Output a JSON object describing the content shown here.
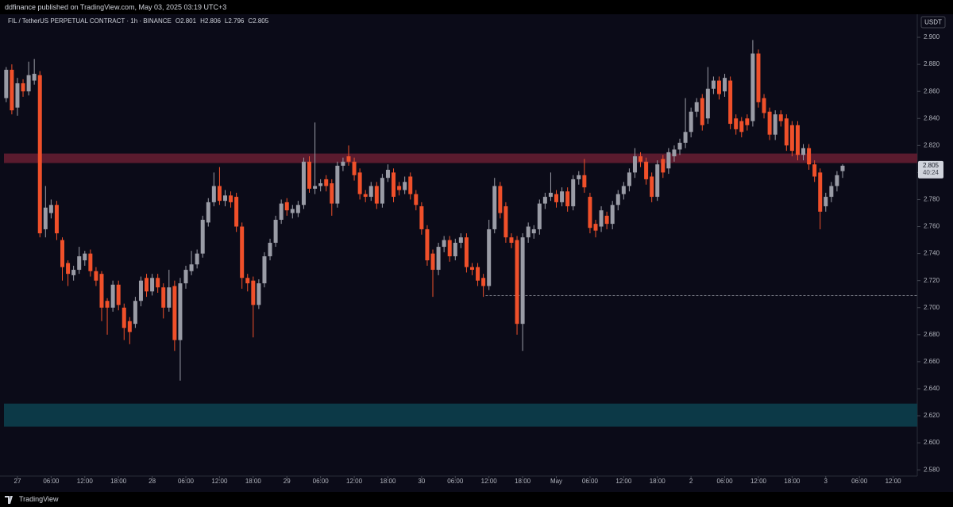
{
  "header": {
    "text": "ddfinance published on TradingView.com, May 03, 2025 03:19 UTC+3"
  },
  "chart_data": {
    "type": "candlestick",
    "title": "FIL / TetherUS PERPETUAL CONTRACT · 1h · BINANCE",
    "ohlc_legend": [
      {
        "key": "O",
        "value": 2.801
      },
      {
        "key": "H",
        "value": 2.806
      },
      {
        "key": "L",
        "value": 2.796
      },
      {
        "key": "C",
        "value": 2.805
      }
    ],
    "currency": "USDT",
    "up_color": "#9a9ca6",
    "down_color": "#f0502a",
    "open": [
      2.855,
      2.876,
      2.848,
      2.866,
      2.86,
      2.868,
      2.872,
      2.758,
      2.77,
      2.776,
      2.75,
      2.733,
      2.724,
      2.728,
      2.735,
      2.74,
      2.727,
      2.725,
      2.705,
      2.7,
      2.717,
      2.7,
      2.69,
      2.688,
      2.705,
      2.722,
      2.712,
      2.722,
      2.715,
      2.7,
      2.716,
      2.676,
      2.718,
      2.727,
      2.732,
      2.74,
      2.763,
      2.778,
      2.79,
      2.779,
      2.783,
      2.782,
      2.76,
      2.722,
      2.72,
      2.702,
      2.718,
      2.738,
      2.748,
      2.765,
      2.778,
      2.77,
      2.77,
      2.776,
      2.808,
      2.788,
      2.79,
      2.795,
      2.792,
      2.777,
      2.805,
      2.812,
      2.808,
      2.8,
      2.784,
      2.782,
      2.79,
      2.777,
      2.796,
      2.8,
      2.79,
      2.787,
      2.797,
      2.784,
      2.775,
      2.758,
      2.74,
      2.728,
      2.745,
      2.75,
      2.738,
      2.748,
      2.752,
      2.73,
      2.73,
      2.722,
      2.716,
      2.758,
      2.79,
      2.775,
      2.752,
      2.75,
      2.688,
      2.752,
      2.755,
      2.758,
      2.777,
      2.782,
      2.784,
      2.778,
      2.786,
      2.775,
      2.795,
      2.798,
      2.782,
      2.762,
      2.76,
      2.768,
      2.762,
      2.776,
      2.784,
      2.79,
      2.8,
      2.812,
      2.808,
      2.797,
      2.782,
      2.81,
      2.803,
      2.812,
      2.817,
      2.822,
      2.83,
      2.845,
      2.855,
      2.84,
      2.862,
      2.868,
      2.86,
      2.868,
      2.84,
      2.838,
      2.84,
      2.838,
      2.888,
      2.855,
      2.845,
      2.828,
      2.843,
      2.84,
      2.835,
      2.835,
      2.813,
      2.818,
      2.806,
      2.8,
      2.775,
      2.782,
      2.79,
      2.801
    ],
    "high": [
      2.878,
      2.88,
      2.87,
      2.869,
      2.882,
      2.884,
      2.875,
      2.79,
      2.78,
      2.779,
      2.752,
      2.735,
      2.731,
      2.745,
      2.742,
      2.743,
      2.73,
      2.727,
      2.707,
      2.72,
      2.72,
      2.703,
      2.693,
      2.708,
      2.723,
      2.725,
      2.725,
      2.725,
      2.718,
      2.728,
      2.72,
      2.722,
      2.731,
      2.742,
      2.743,
      2.768,
      2.781,
      2.8,
      2.804,
      2.787,
      2.786,
      2.785,
      2.763,
      2.725,
      2.723,
      2.721,
      2.741,
      2.751,
      2.768,
      2.78,
      2.781,
      2.776,
      2.779,
      2.811,
      2.812,
      2.837,
      2.795,
      2.798,
      2.795,
      2.808,
      2.811,
      2.82,
      2.811,
      2.803,
      2.787,
      2.793,
      2.793,
      2.799,
      2.806,
      2.803,
      2.793,
      2.797,
      2.8,
      2.787,
      2.778,
      2.761,
      2.743,
      2.748,
      2.753,
      2.753,
      2.751,
      2.755,
      2.755,
      2.733,
      2.733,
      2.725,
      2.765,
      2.796,
      2.793,
      2.778,
      2.755,
      2.753,
      2.755,
      2.763,
      2.761,
      2.78,
      2.785,
      2.8,
      2.787,
      2.789,
      2.789,
      2.798,
      2.801,
      2.81,
      2.785,
      2.765,
      2.775,
      2.771,
      2.779,
      2.787,
      2.793,
      2.803,
      2.818,
      2.815,
      2.811,
      2.8,
      2.809,
      2.813,
      2.818,
      2.82,
      2.825,
      2.855,
      2.848,
      2.855,
      2.858,
      2.878,
      2.871,
      2.871,
      2.873,
      2.871,
      2.843,
      2.841,
      2.843,
      2.898,
      2.891,
      2.858,
      2.848,
      2.846,
      2.846,
      2.843,
      2.838,
      2.838,
      2.821,
      2.821,
      2.809,
      2.803,
      2.785,
      2.793,
      2.801,
      2.806
    ],
    "low": [
      2.852,
      2.843,
      2.842,
      2.856,
      2.857,
      2.865,
      2.752,
      2.752,
      2.766,
      2.75,
      2.72,
      2.716,
      2.72,
      2.725,
      2.731,
      2.723,
      2.716,
      2.69,
      2.68,
      2.697,
      2.698,
      2.676,
      2.673,
      2.685,
      2.701,
      2.708,
      2.709,
      2.711,
      2.692,
      2.697,
      2.668,
      2.646,
      2.714,
      2.724,
      2.729,
      2.737,
      2.76,
      2.775,
      2.776,
      2.775,
      2.774,
      2.756,
      2.714,
      2.712,
      2.678,
      2.699,
      2.715,
      2.735,
      2.745,
      2.762,
      2.768,
      2.766,
      2.767,
      2.773,
      2.785,
      2.784,
      2.786,
      2.786,
      2.768,
      2.774,
      2.801,
      2.805,
      2.794,
      2.78,
      2.778,
      2.779,
      2.773,
      2.774,
      2.793,
      2.778,
      2.783,
      2.784,
      2.78,
      2.772,
      2.754,
      2.731,
      2.708,
      2.724,
      2.741,
      2.734,
      2.735,
      2.744,
      2.726,
      2.724,
      2.716,
      2.708,
      2.713,
      2.755,
      2.766,
      2.748,
      2.744,
      2.68,
      2.668,
      2.748,
      2.751,
      2.754,
      2.773,
      2.779,
      2.774,
      2.775,
      2.771,
      2.772,
      2.791,
      2.785,
      2.755,
      2.752,
      2.756,
      2.758,
      2.758,
      2.772,
      2.78,
      2.786,
      2.796,
      2.804,
      2.791,
      2.778,
      2.779,
      2.796,
      2.799,
      2.808,
      2.813,
      2.818,
      2.826,
      2.841,
      2.831,
      2.836,
      2.858,
      2.854,
      2.856,
      2.832,
      2.828,
      2.826,
      2.831,
      2.834,
      2.848,
      2.84,
      2.824,
      2.824,
      2.834,
      2.816,
      2.812,
      2.809,
      2.809,
      2.802,
      2.793,
      2.758,
      2.771,
      2.778,
      2.786,
      2.796
    ],
    "close": [
      2.876,
      2.846,
      2.866,
      2.86,
      2.872,
      2.873,
      2.755,
      2.774,
      2.776,
      2.755,
      2.73,
      2.725,
      2.728,
      2.738,
      2.74,
      2.727,
      2.72,
      2.7,
      2.7,
      2.717,
      2.702,
      2.685,
      2.682,
      2.705,
      2.72,
      2.712,
      2.722,
      2.715,
      2.7,
      2.715,
      2.676,
      2.718,
      2.728,
      2.732,
      2.74,
      2.765,
      2.778,
      2.79,
      2.779,
      2.783,
      2.778,
      2.76,
      2.722,
      2.718,
      2.702,
      2.718,
      2.738,
      2.748,
      2.765,
      2.777,
      2.772,
      2.773,
      2.776,
      2.808,
      2.788,
      2.79,
      2.792,
      2.79,
      2.777,
      2.805,
      2.808,
      2.808,
      2.798,
      2.784,
      2.782,
      2.79,
      2.777,
      2.796,
      2.802,
      2.782,
      2.787,
      2.793,
      2.784,
      2.776,
      2.758,
      2.735,
      2.728,
      2.745,
      2.75,
      2.738,
      2.748,
      2.752,
      2.73,
      2.728,
      2.72,
      2.716,
      2.758,
      2.79,
      2.77,
      2.752,
      2.748,
      2.688,
      2.752,
      2.76,
      2.758,
      2.777,
      2.782,
      2.785,
      2.778,
      2.786,
      2.775,
      2.795,
      2.798,
      2.789,
      2.759,
      2.757,
      2.772,
      2.762,
      2.776,
      2.784,
      2.79,
      2.8,
      2.812,
      2.808,
      2.795,
      2.782,
      2.806,
      2.8,
      2.815,
      2.817,
      2.822,
      2.83,
      2.845,
      2.852,
      2.835,
      2.862,
      2.868,
      2.858,
      2.87,
      2.836,
      2.832,
      2.83,
      2.835,
      2.888,
      2.852,
      2.844,
      2.828,
      2.843,
      2.838,
      2.82,
      2.816,
      2.813,
      2.818,
      2.806,
      2.797,
      2.771,
      2.782,
      2.79,
      2.798,
      2.805
    ],
    "xlim": [
      -0.4,
      162.3
    ],
    "xticks": [
      {
        "value": 2,
        "label": "27"
      },
      {
        "value": 8,
        "label": "06:00"
      },
      {
        "value": 14,
        "label": "12:00"
      },
      {
        "value": 20,
        "label": "18:00"
      },
      {
        "value": 26,
        "label": "28"
      },
      {
        "value": 32,
        "label": "06:00"
      },
      {
        "value": 38,
        "label": "12:00"
      },
      {
        "value": 44,
        "label": "18:00"
      },
      {
        "value": 50,
        "label": "29"
      },
      {
        "value": 56,
        "label": "06:00"
      },
      {
        "value": 62,
        "label": "12:00"
      },
      {
        "value": 68,
        "label": "18:00"
      },
      {
        "value": 74,
        "label": "30"
      },
      {
        "value": 80,
        "label": "06:00"
      },
      {
        "value": 86,
        "label": "12:00"
      },
      {
        "value": 92,
        "label": "18:00"
      },
      {
        "value": 98,
        "label": "May"
      },
      {
        "value": 104,
        "label": "06:00"
      },
      {
        "value": 110,
        "label": "12:00"
      },
      {
        "value": 116,
        "label": "18:00"
      },
      {
        "value": 122,
        "label": "2"
      },
      {
        "value": 128,
        "label": "06:00"
      },
      {
        "value": 134,
        "label": "12:00"
      },
      {
        "value": 140,
        "label": "18:00"
      },
      {
        "value": 146,
        "label": "3"
      },
      {
        "value": 152,
        "label": "06:00"
      },
      {
        "value": 158,
        "label": "12:00"
      }
    ],
    "ylim": [
      2.5754,
      2.9147
    ],
    "yticks": [
      {
        "value": 2.58,
        "label": "2.580"
      },
      {
        "value": 2.6,
        "label": "2.600"
      },
      {
        "value": 2.62,
        "label": "2.620"
      },
      {
        "value": 2.64,
        "label": "2.640"
      },
      {
        "value": 2.66,
        "label": "2.660"
      },
      {
        "value": 2.68,
        "label": "2.680"
      },
      {
        "value": 2.7,
        "label": "2.700"
      },
      {
        "value": 2.72,
        "label": "2.720"
      },
      {
        "value": 2.74,
        "label": "2.740"
      },
      {
        "value": 2.76,
        "label": "2.760"
      },
      {
        "value": 2.78,
        "label": "2.780"
      },
      {
        "value": 2.8,
        "label": "2.800"
      },
      {
        "value": 2.82,
        "label": "2.820"
      },
      {
        "value": 2.84,
        "label": "2.840"
      },
      {
        "value": 2.86,
        "label": "2.860"
      },
      {
        "value": 2.88,
        "label": "2.880"
      },
      {
        "value": 2.9,
        "label": "2.900"
      }
    ],
    "last_price": 2.805,
    "countdown": "40:24",
    "zones": [
      {
        "from": 2.807,
        "to": 2.814,
        "color": "#5a1b2e"
      },
      {
        "from": 2.612,
        "to": 2.629,
        "color": "#0c3947"
      }
    ],
    "level_line": {
      "value": 2.709,
      "start": 85.4
    }
  },
  "footer": {
    "brand": "TradingView"
  }
}
